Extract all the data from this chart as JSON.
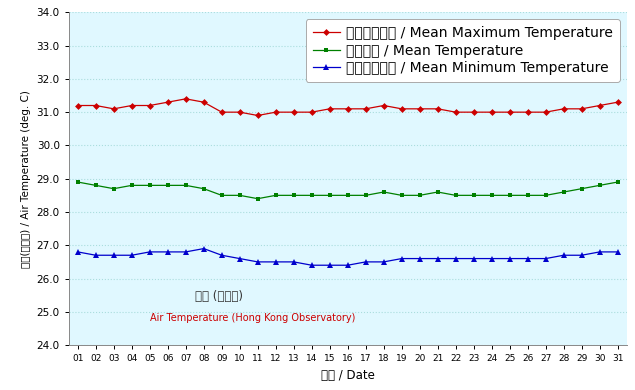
{
  "days": [
    1,
    2,
    3,
    4,
    5,
    6,
    7,
    8,
    9,
    10,
    11,
    12,
    13,
    14,
    15,
    16,
    17,
    18,
    19,
    20,
    21,
    22,
    23,
    24,
    25,
    26,
    27,
    28,
    29,
    30,
    31
  ],
  "mean_max": [
    31.2,
    31.2,
    31.1,
    31.2,
    31.2,
    31.3,
    31.4,
    31.3,
    31.0,
    31.0,
    30.9,
    31.0,
    31.0,
    31.0,
    31.1,
    31.1,
    31.1,
    31.2,
    31.1,
    31.1,
    31.1,
    31.0,
    31.0,
    31.0,
    31.0,
    31.0,
    31.0,
    31.1,
    31.1,
    31.2,
    31.3
  ],
  "mean_temp": [
    28.9,
    28.8,
    28.7,
    28.8,
    28.8,
    28.8,
    28.8,
    28.7,
    28.5,
    28.5,
    28.4,
    28.5,
    28.5,
    28.5,
    28.5,
    28.5,
    28.5,
    28.6,
    28.5,
    28.5,
    28.6,
    28.5,
    28.5,
    28.5,
    28.5,
    28.5,
    28.5,
    28.6,
    28.7,
    28.8,
    28.9
  ],
  "mean_min": [
    26.8,
    26.7,
    26.7,
    26.7,
    26.8,
    26.8,
    26.8,
    26.9,
    26.7,
    26.6,
    26.5,
    26.5,
    26.5,
    26.4,
    26.4,
    26.4,
    26.5,
    26.5,
    26.6,
    26.6,
    26.6,
    26.6,
    26.6,
    26.6,
    26.6,
    26.6,
    26.6,
    26.7,
    26.7,
    26.8,
    26.8
  ],
  "max_color": "#CC0000",
  "mean_color": "#008000",
  "min_color": "#0000CC",
  "bg_color": "#E0F8FF",
  "ylim": [
    24.0,
    34.0
  ],
  "yticks": [
    24.0,
    25.0,
    26.0,
    27.0,
    28.0,
    29.0,
    30.0,
    31.0,
    32.0,
    33.0,
    34.0
  ],
  "ylabel": "氣溫(攝氏度) / Air Temperature (deg. C)",
  "xlabel": "日期 / Date",
  "legend_max": "平均最高氣溫 / Mean Maximum Temperature",
  "legend_mean": "平均氣溫 / Mean Temperature",
  "legend_min": "平均最低氣溫 / Mean Minimum Temperature",
  "annotation_zh": "氣溫 (天文台)",
  "annotation_en": "Air Temperature (Hong Kong Observatory)",
  "annotation_zh_color": "#333333",
  "annotation_en_color": "#CC0000",
  "grid_color": "#AADDDD"
}
